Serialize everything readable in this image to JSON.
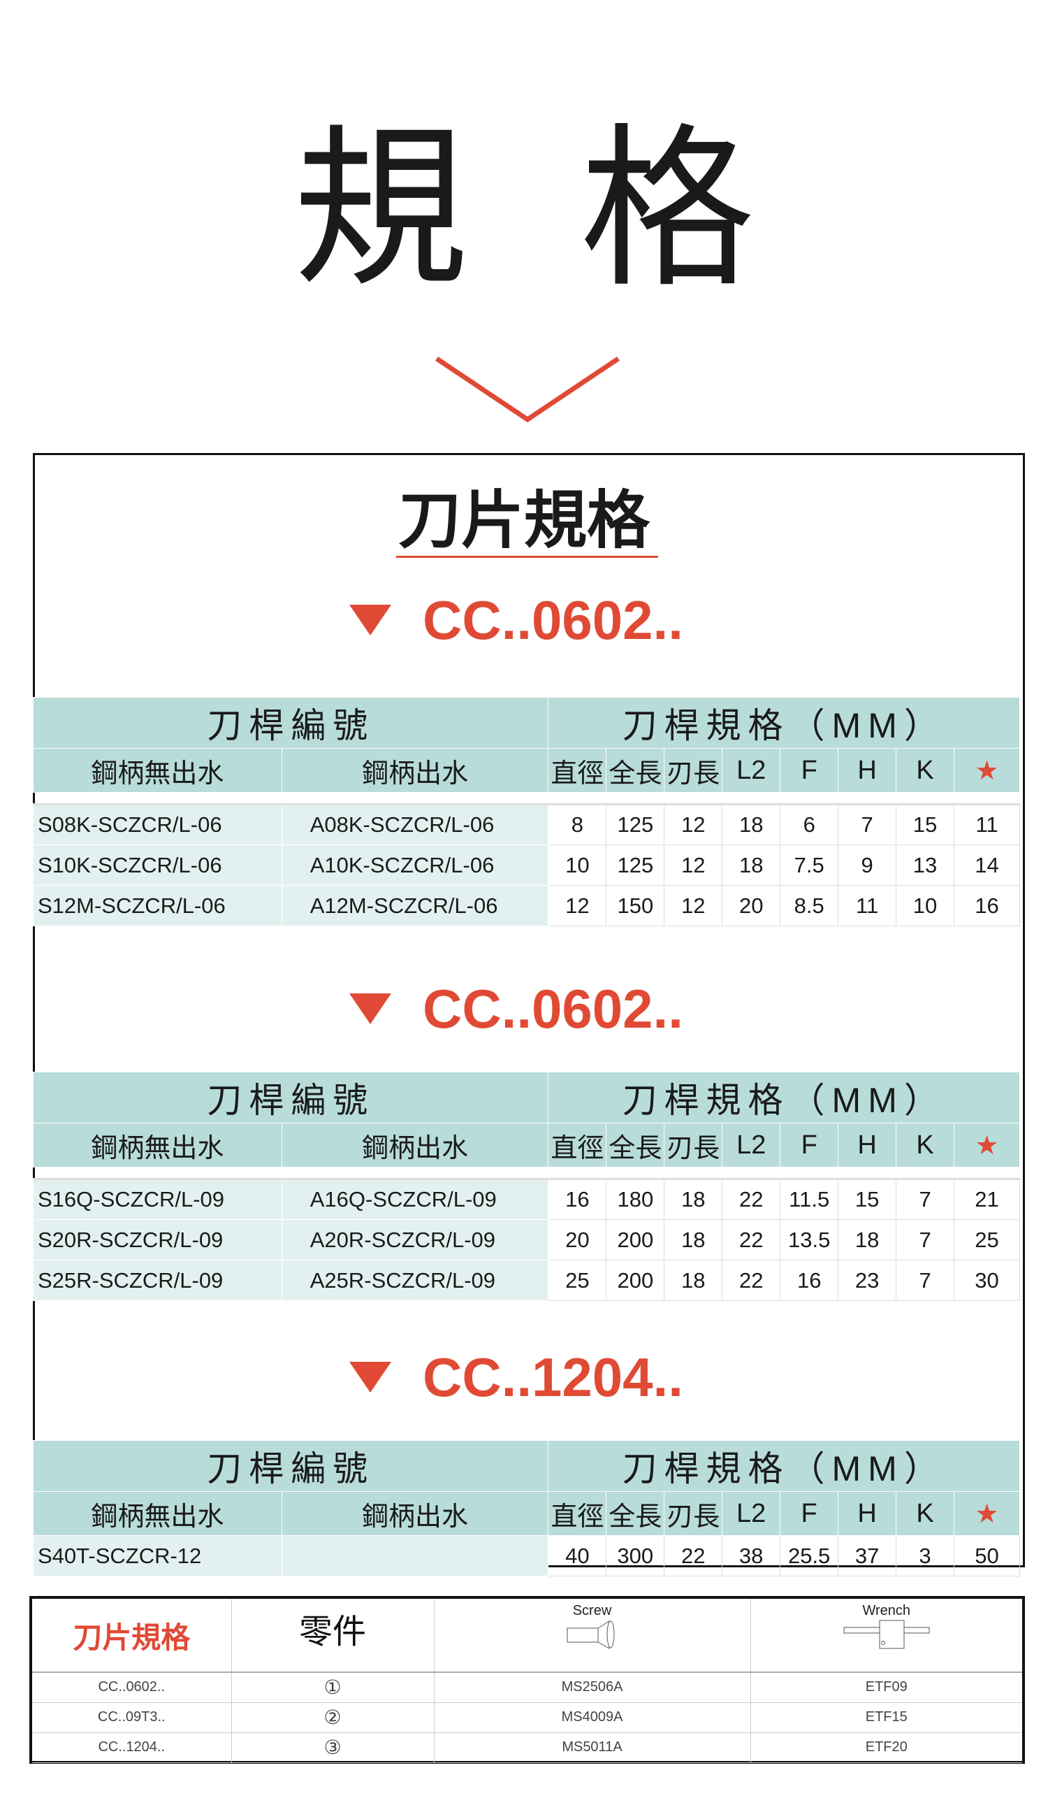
{
  "title": "規格",
  "title_chars": [
    "規",
    "格"
  ],
  "main": {
    "heading": "刀片規格",
    "sections": [
      {
        "label": "CC..0602..",
        "header": {
          "group_left": "刀桿編號",
          "group_right": "刀桿規格（MM）",
          "columns": [
            "鋼柄無出水",
            "鋼柄出水",
            "直徑",
            "全長",
            "刃長",
            "L2",
            "F",
            "H",
            "K",
            "★"
          ]
        },
        "rows": [
          [
            "S08K-SCZCR/L-06",
            "A08K-SCZCR/L-06",
            "8",
            "125",
            "12",
            "18",
            "6",
            "7",
            "15",
            "11"
          ],
          [
            "S10K-SCZCR/L-06",
            "A10K-SCZCR/L-06",
            "10",
            "125",
            "12",
            "18",
            "7.5",
            "9",
            "13",
            "14"
          ],
          [
            "S12M-SCZCR/L-06",
            "A12M-SCZCR/L-06",
            "12",
            "150",
            "12",
            "20",
            "8.5",
            "11",
            "10",
            "16"
          ]
        ]
      },
      {
        "label": "CC..0602..",
        "header": {
          "group_left": "刀桿編號",
          "group_right": "刀桿規格（MM）",
          "columns": [
            "鋼柄無出水",
            "鋼柄出水",
            "直徑",
            "全長",
            "刃長",
            "L2",
            "F",
            "H",
            "K",
            "★"
          ]
        },
        "rows": [
          [
            "S16Q-SCZCR/L-09",
            "A16Q-SCZCR/L-09",
            "16",
            "180",
            "18",
            "22",
            "11.5",
            "15",
            "7",
            "21"
          ],
          [
            "S20R-SCZCR/L-09",
            "A20R-SCZCR/L-09",
            "20",
            "200",
            "18",
            "22",
            "13.5",
            "18",
            "7",
            "25"
          ],
          [
            "S25R-SCZCR/L-09",
            "A25R-SCZCR/L-09",
            "25",
            "200",
            "18",
            "22",
            "16",
            "23",
            "7",
            "30"
          ]
        ]
      },
      {
        "label": "CC..1204..",
        "header": {
          "group_left": "刀桿編號",
          "group_right": "刀桿規格（MM）",
          "columns": [
            "鋼柄無出水",
            "鋼柄出水",
            "直徑",
            "全長",
            "刃長",
            "L2",
            "F",
            "H",
            "K",
            "★"
          ]
        },
        "rows": [
          [
            "S40T-SCZCR-12",
            "",
            "40",
            "300",
            "22",
            "38",
            "25.5",
            "37",
            "3",
            "50"
          ]
        ]
      }
    ]
  },
  "parts": {
    "header": {
      "insert": "刀片規格",
      "part": "零件",
      "screw": "Screw",
      "wrench": "Wrench"
    },
    "rows": [
      [
        "CC..0602..",
        "①",
        "MS2506A",
        "ETF09"
      ],
      [
        "CC..09T3..",
        "②",
        "MS4009A",
        "ETF15"
      ],
      [
        "CC..1204..",
        "③",
        "MS5011A",
        "ETF20"
      ]
    ]
  },
  "colors": {
    "accent": "#e04a35",
    "header_bg": "#b8dcd9",
    "cell_bg": "#e2f1ef"
  }
}
